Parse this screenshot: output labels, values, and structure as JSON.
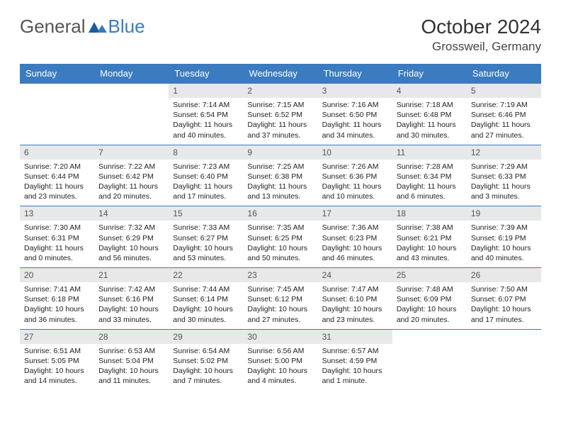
{
  "brand": {
    "general": "General",
    "blue": "Blue"
  },
  "title": "October 2024",
  "location": "Grossweil, Germany",
  "colors": {
    "header_bg": "#3b7bbf",
    "header_fg": "#ffffff",
    "daynum_bg": "#e7e8e9",
    "daynum_fg": "#555555",
    "rule": "#3b7bbf"
  },
  "day_names": [
    "Sunday",
    "Monday",
    "Tuesday",
    "Wednesday",
    "Thursday",
    "Friday",
    "Saturday"
  ],
  "weeks": [
    [
      null,
      null,
      {
        "n": "1",
        "sr": "Sunrise: 7:14 AM",
        "ss": "Sunset: 6:54 PM",
        "d1": "Daylight: 11 hours",
        "d2": "and 40 minutes."
      },
      {
        "n": "2",
        "sr": "Sunrise: 7:15 AM",
        "ss": "Sunset: 6:52 PM",
        "d1": "Daylight: 11 hours",
        "d2": "and 37 minutes."
      },
      {
        "n": "3",
        "sr": "Sunrise: 7:16 AM",
        "ss": "Sunset: 6:50 PM",
        "d1": "Daylight: 11 hours",
        "d2": "and 34 minutes."
      },
      {
        "n": "4",
        "sr": "Sunrise: 7:18 AM",
        "ss": "Sunset: 6:48 PM",
        "d1": "Daylight: 11 hours",
        "d2": "and 30 minutes."
      },
      {
        "n": "5",
        "sr": "Sunrise: 7:19 AM",
        "ss": "Sunset: 6:46 PM",
        "d1": "Daylight: 11 hours",
        "d2": "and 27 minutes."
      }
    ],
    [
      {
        "n": "6",
        "sr": "Sunrise: 7:20 AM",
        "ss": "Sunset: 6:44 PM",
        "d1": "Daylight: 11 hours",
        "d2": "and 23 minutes."
      },
      {
        "n": "7",
        "sr": "Sunrise: 7:22 AM",
        "ss": "Sunset: 6:42 PM",
        "d1": "Daylight: 11 hours",
        "d2": "and 20 minutes."
      },
      {
        "n": "8",
        "sr": "Sunrise: 7:23 AM",
        "ss": "Sunset: 6:40 PM",
        "d1": "Daylight: 11 hours",
        "d2": "and 17 minutes."
      },
      {
        "n": "9",
        "sr": "Sunrise: 7:25 AM",
        "ss": "Sunset: 6:38 PM",
        "d1": "Daylight: 11 hours",
        "d2": "and 13 minutes."
      },
      {
        "n": "10",
        "sr": "Sunrise: 7:26 AM",
        "ss": "Sunset: 6:36 PM",
        "d1": "Daylight: 11 hours",
        "d2": "and 10 minutes."
      },
      {
        "n": "11",
        "sr": "Sunrise: 7:28 AM",
        "ss": "Sunset: 6:34 PM",
        "d1": "Daylight: 11 hours",
        "d2": "and 6 minutes."
      },
      {
        "n": "12",
        "sr": "Sunrise: 7:29 AM",
        "ss": "Sunset: 6:33 PM",
        "d1": "Daylight: 11 hours",
        "d2": "and 3 minutes."
      }
    ],
    [
      {
        "n": "13",
        "sr": "Sunrise: 7:30 AM",
        "ss": "Sunset: 6:31 PM",
        "d1": "Daylight: 11 hours",
        "d2": "and 0 minutes."
      },
      {
        "n": "14",
        "sr": "Sunrise: 7:32 AM",
        "ss": "Sunset: 6:29 PM",
        "d1": "Daylight: 10 hours",
        "d2": "and 56 minutes."
      },
      {
        "n": "15",
        "sr": "Sunrise: 7:33 AM",
        "ss": "Sunset: 6:27 PM",
        "d1": "Daylight: 10 hours",
        "d2": "and 53 minutes."
      },
      {
        "n": "16",
        "sr": "Sunrise: 7:35 AM",
        "ss": "Sunset: 6:25 PM",
        "d1": "Daylight: 10 hours",
        "d2": "and 50 minutes."
      },
      {
        "n": "17",
        "sr": "Sunrise: 7:36 AM",
        "ss": "Sunset: 6:23 PM",
        "d1": "Daylight: 10 hours",
        "d2": "and 46 minutes."
      },
      {
        "n": "18",
        "sr": "Sunrise: 7:38 AM",
        "ss": "Sunset: 6:21 PM",
        "d1": "Daylight: 10 hours",
        "d2": "and 43 minutes."
      },
      {
        "n": "19",
        "sr": "Sunrise: 7:39 AM",
        "ss": "Sunset: 6:19 PM",
        "d1": "Daylight: 10 hours",
        "d2": "and 40 minutes."
      }
    ],
    [
      {
        "n": "20",
        "sr": "Sunrise: 7:41 AM",
        "ss": "Sunset: 6:18 PM",
        "d1": "Daylight: 10 hours",
        "d2": "and 36 minutes."
      },
      {
        "n": "21",
        "sr": "Sunrise: 7:42 AM",
        "ss": "Sunset: 6:16 PM",
        "d1": "Daylight: 10 hours",
        "d2": "and 33 minutes."
      },
      {
        "n": "22",
        "sr": "Sunrise: 7:44 AM",
        "ss": "Sunset: 6:14 PM",
        "d1": "Daylight: 10 hours",
        "d2": "and 30 minutes."
      },
      {
        "n": "23",
        "sr": "Sunrise: 7:45 AM",
        "ss": "Sunset: 6:12 PM",
        "d1": "Daylight: 10 hours",
        "d2": "and 27 minutes."
      },
      {
        "n": "24",
        "sr": "Sunrise: 7:47 AM",
        "ss": "Sunset: 6:10 PM",
        "d1": "Daylight: 10 hours",
        "d2": "and 23 minutes."
      },
      {
        "n": "25",
        "sr": "Sunrise: 7:48 AM",
        "ss": "Sunset: 6:09 PM",
        "d1": "Daylight: 10 hours",
        "d2": "and 20 minutes."
      },
      {
        "n": "26",
        "sr": "Sunrise: 7:50 AM",
        "ss": "Sunset: 6:07 PM",
        "d1": "Daylight: 10 hours",
        "d2": "and 17 minutes."
      }
    ],
    [
      {
        "n": "27",
        "sr": "Sunrise: 6:51 AM",
        "ss": "Sunset: 5:05 PM",
        "d1": "Daylight: 10 hours",
        "d2": "and 14 minutes."
      },
      {
        "n": "28",
        "sr": "Sunrise: 6:53 AM",
        "ss": "Sunset: 5:04 PM",
        "d1": "Daylight: 10 hours",
        "d2": "and 11 minutes."
      },
      {
        "n": "29",
        "sr": "Sunrise: 6:54 AM",
        "ss": "Sunset: 5:02 PM",
        "d1": "Daylight: 10 hours",
        "d2": "and 7 minutes."
      },
      {
        "n": "30",
        "sr": "Sunrise: 6:56 AM",
        "ss": "Sunset: 5:00 PM",
        "d1": "Daylight: 10 hours",
        "d2": "and 4 minutes."
      },
      {
        "n": "31",
        "sr": "Sunrise: 6:57 AM",
        "ss": "Sunset: 4:59 PM",
        "d1": "Daylight: 10 hours",
        "d2": "and 1 minute."
      },
      null,
      null
    ]
  ]
}
